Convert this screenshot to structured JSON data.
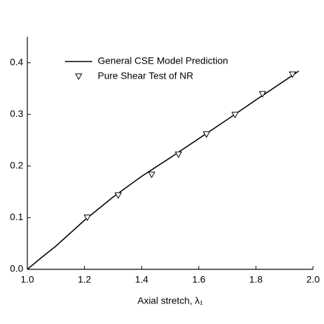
{
  "chart_data": {
    "type": "line",
    "xlabel": "Axial stretch, λ₁",
    "xlim": [
      1.0,
      2.0
    ],
    "ylim": [
      0,
      0.45
    ],
    "xticks": [
      {
        "value": 1.0,
        "label": "1.0"
      },
      1.2,
      1.4,
      1.6,
      1.8,
      {
        "value": 2.0,
        "label": "2.0"
      }
    ],
    "yticks": [
      {
        "value": 0,
        "label": "0.0"
      },
      0.1,
      0.2,
      0.3,
      0.4
    ],
    "legend": "upper-left",
    "series": [
      {
        "name": "General CSE Model Prediction",
        "type": "line",
        "color": "#000000",
        "x": [
          1.0,
          1.05,
          1.1,
          1.2,
          1.3,
          1.4,
          1.5,
          1.6,
          1.7,
          1.8,
          1.9,
          1.95
        ],
        "values": [
          0,
          0.023,
          0.045,
          0.095,
          0.14,
          0.18,
          0.216,
          0.253,
          0.29,
          0.328,
          0.365,
          0.384
        ]
      },
      {
        "name": "Pure Shear Test of NR",
        "type": "scatter",
        "color": "#000000",
        "x": [
          1.21,
          1.318,
          1.435,
          1.529,
          1.627,
          1.727,
          1.823,
          1.928
        ],
        "values": [
          0.1,
          0.143,
          0.183,
          0.222,
          0.261,
          0.299,
          0.339,
          0.377
        ]
      }
    ]
  }
}
